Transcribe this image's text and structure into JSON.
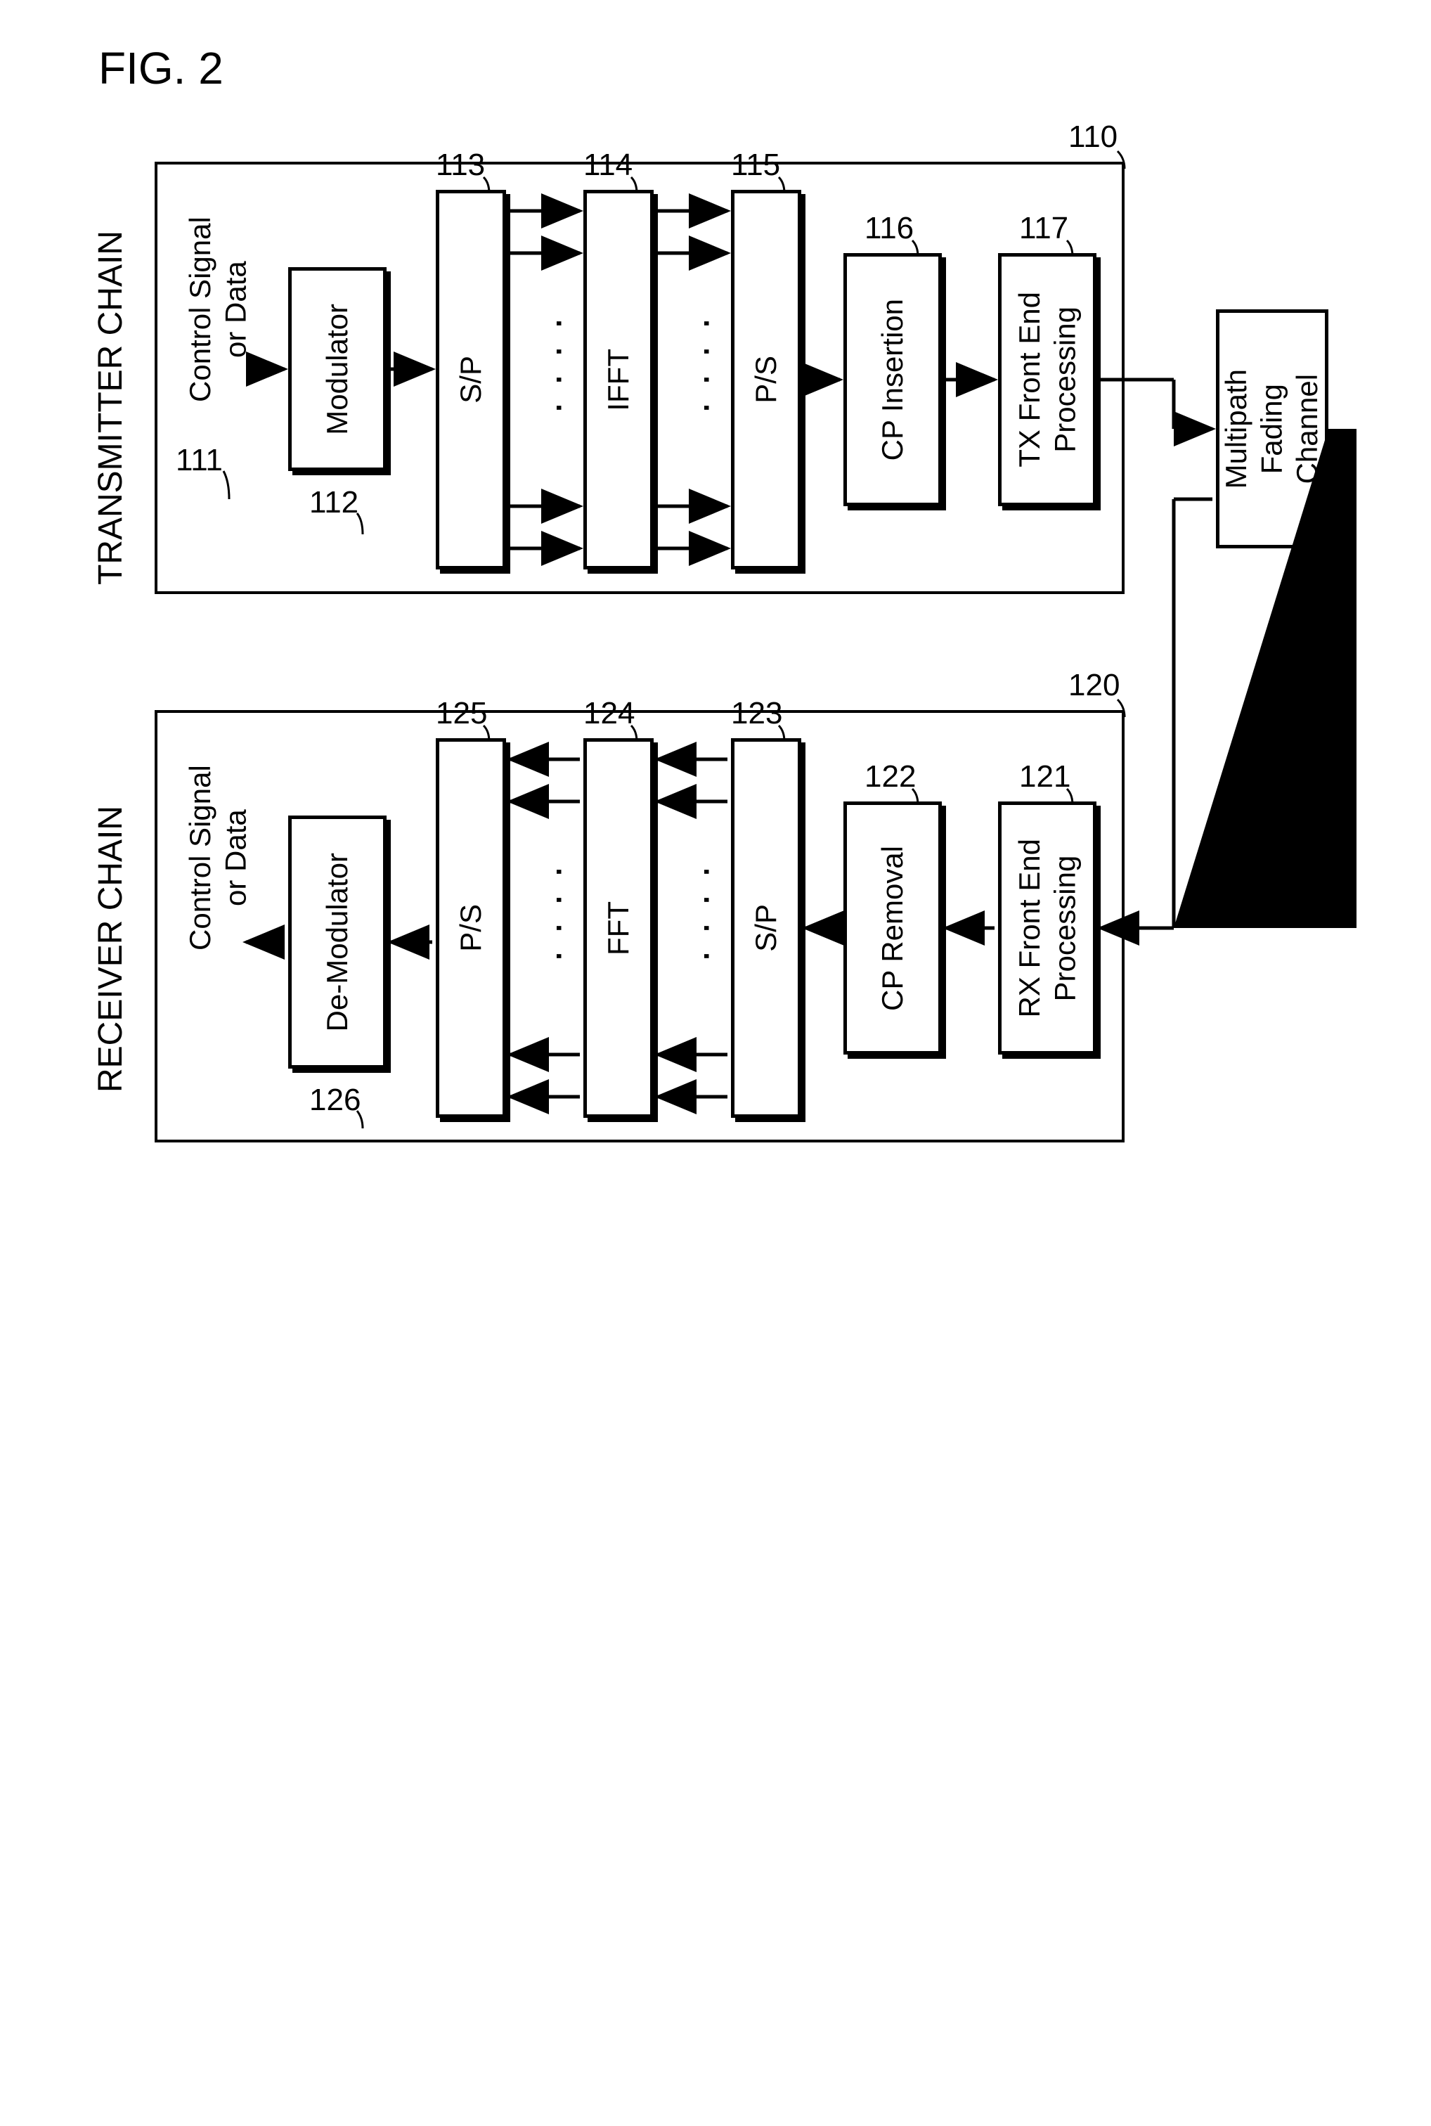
{
  "figure_label": "FIG. 2",
  "transmitter": {
    "chain_label": "TRANSMITTER CHAIN",
    "ref": "110",
    "io": "Control Signal\nor Data",
    "blocks": {
      "modulator": {
        "ref": "112",
        "label": "Modulator"
      },
      "sp": {
        "ref": "113",
        "label": "S/P"
      },
      "ifft": {
        "ref": "114",
        "label": "IFFT"
      },
      "ps": {
        "ref": "115",
        "label": "P/S"
      },
      "cp": {
        "ref": "116",
        "label": "CP Insertion"
      },
      "fe": {
        "ref": "117",
        "label": "TX Front End\nProcessing"
      }
    },
    "io_ref": "111"
  },
  "receiver": {
    "chain_label": "RECEIVER CHAIN",
    "ref": "120",
    "io": "Control Signal\nor Data",
    "blocks": {
      "fe": {
        "ref": "121",
        "label": "RX Front End\nProcessing"
      },
      "cp": {
        "ref": "122",
        "label": "CP Removal"
      },
      "sp": {
        "ref": "123",
        "label": "S/P"
      },
      "fft": {
        "ref": "124",
        "label": "FFT"
      },
      "ps": {
        "ref": "125",
        "label": "P/S"
      },
      "demod": {
        "ref": "126",
        "label": "De-Modulator"
      }
    }
  },
  "channel": {
    "label": "Multipath\nFading\nChannel"
  },
  "style": {
    "block_border": "#000000",
    "background": "#ffffff",
    "arrow_stroke_width": 5,
    "font_size_block": 42,
    "font_size_ref": 44,
    "font_size_fig": 64
  }
}
